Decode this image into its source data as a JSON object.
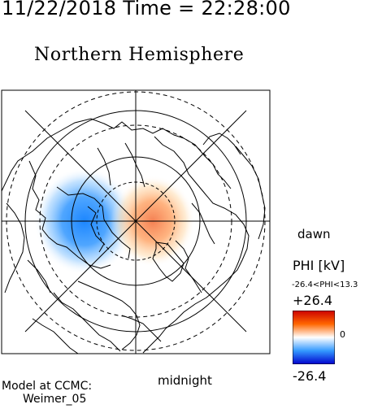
{
  "header": {
    "date": "11/22/2018",
    "time_label": "Time",
    "time_sep": "=",
    "time": "22:28:00"
  },
  "title": "Northern Hemisphere",
  "labels": {
    "dawn": "dawn",
    "midnight": "midnight"
  },
  "colorbar": {
    "title": "PHI [kV]",
    "range_text": "-26.4<PHI<13.3",
    "max_label": "+26.4",
    "zero_label": "0",
    "min_label": "-26.4",
    "colors": [
      "#cc0000",
      "#ff6600",
      "#ffffff",
      "#3399ff",
      "#0000cc"
    ]
  },
  "model": {
    "line1": "Model at CCMC:",
    "line2": "Weimer_05"
  },
  "map_data": {
    "projection": "polar stereographic, north pole",
    "potential_min_kV": -26.4,
    "potential_max_kV": 13.3,
    "negative_cell_color": "#1e8cff",
    "positive_cell_color": "#ff7a3d"
  }
}
